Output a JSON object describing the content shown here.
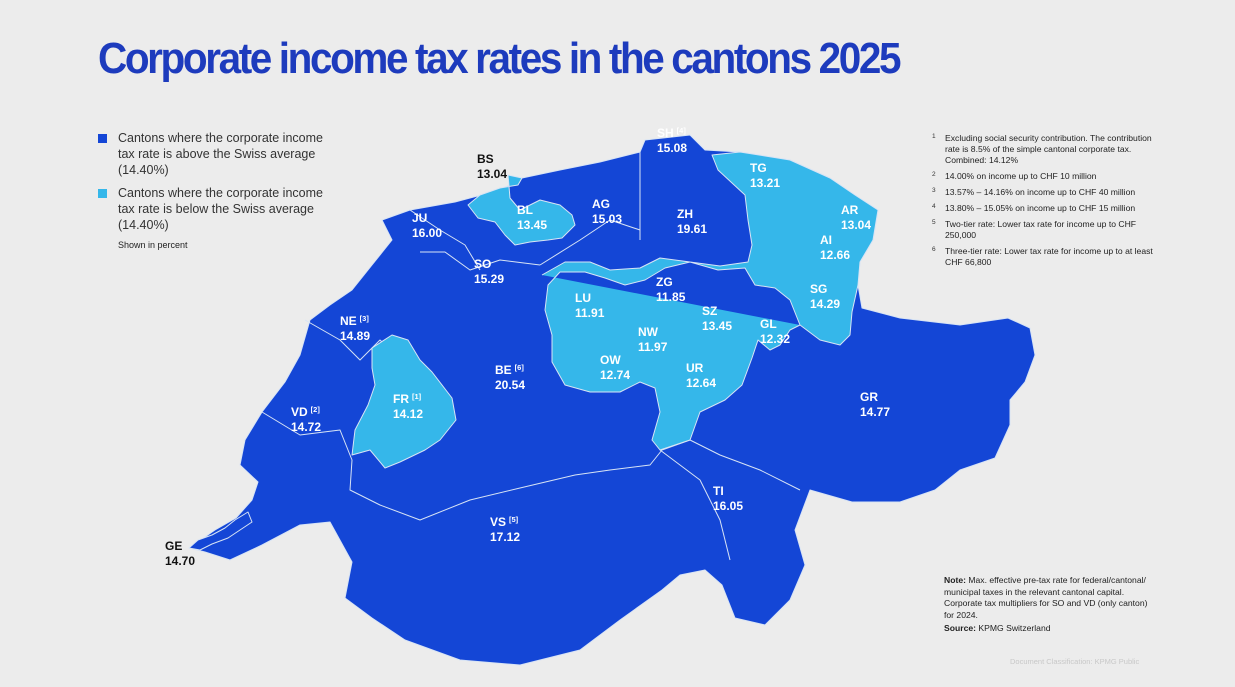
{
  "title": "Corporate income tax rates in the cantons 2025",
  "colors": {
    "above": "#1446d6",
    "below": "#35b7ea",
    "title": "#1d3bbd",
    "background": "#ececec"
  },
  "legend": {
    "above": "Cantons where the corporate income tax rate is above the Swiss average (14.40%)",
    "below": "Cantons where the corporate income tax rate is below the Swiss average (14.40%)",
    "unit_note": "Shown in percent"
  },
  "cantons": [
    {
      "code": "SH",
      "rate": "15.08",
      "footnote": "4",
      "group": "above"
    },
    {
      "code": "BS",
      "rate": "13.04",
      "footnote": "",
      "group": "below"
    },
    {
      "code": "TG",
      "rate": "13.21",
      "footnote": "",
      "group": "below"
    },
    {
      "code": "JU",
      "rate": "16.00",
      "footnote": "",
      "group": "above"
    },
    {
      "code": "BL",
      "rate": "13.45",
      "footnote": "",
      "group": "below"
    },
    {
      "code": "AG",
      "rate": "15.03",
      "footnote": "",
      "group": "above"
    },
    {
      "code": "ZH",
      "rate": "19.61",
      "footnote": "",
      "group": "above"
    },
    {
      "code": "AR",
      "rate": "13.04",
      "footnote": "",
      "group": "below"
    },
    {
      "code": "AI",
      "rate": "12.66",
      "footnote": "",
      "group": "below"
    },
    {
      "code": "SO",
      "rate": "15.29",
      "footnote": "",
      "group": "above"
    },
    {
      "code": "ZG",
      "rate": "11.85",
      "footnote": "",
      "group": "below"
    },
    {
      "code": "SG",
      "rate": "14.29",
      "footnote": "",
      "group": "below"
    },
    {
      "code": "LU",
      "rate": "11.91",
      "footnote": "",
      "group": "below"
    },
    {
      "code": "SZ",
      "rate": "13.45",
      "footnote": "",
      "group": "below"
    },
    {
      "code": "GL",
      "rate": "12.32",
      "footnote": "",
      "group": "below"
    },
    {
      "code": "NE",
      "rate": "14.89",
      "footnote": "3",
      "group": "above"
    },
    {
      "code": "NW",
      "rate": "11.97",
      "footnote": "",
      "group": "below"
    },
    {
      "code": "OW",
      "rate": "12.74",
      "footnote": "",
      "group": "below"
    },
    {
      "code": "UR",
      "rate": "12.64",
      "footnote": "",
      "group": "below"
    },
    {
      "code": "BE",
      "rate": "20.54",
      "footnote": "6",
      "group": "above"
    },
    {
      "code": "FR",
      "rate": "14.12",
      "footnote": "1",
      "group": "below"
    },
    {
      "code": "VD",
      "rate": "14.72",
      "footnote": "2",
      "group": "above"
    },
    {
      "code": "GR",
      "rate": "14.77",
      "footnote": "",
      "group": "above"
    },
    {
      "code": "TI",
      "rate": "16.05",
      "footnote": "",
      "group": "above"
    },
    {
      "code": "VS",
      "rate": "17.12",
      "footnote": "5",
      "group": "above"
    },
    {
      "code": "GE",
      "rate": "14.70",
      "footnote": "",
      "group": "above"
    }
  ],
  "footnotes": [
    {
      "num": "1",
      "text": "Excluding social security contribution. The contribution rate is 8.5% of the simple cantonal corporate tax. Combined: 14.12%"
    },
    {
      "num": "2",
      "text": "14.00% on income up to CHF 10 million"
    },
    {
      "num": "3",
      "text": "13.57% – 14.16% on income up to CHF 40 million"
    },
    {
      "num": "4",
      "text": "13.80% – 15.05% on income up to CHF 15 million"
    },
    {
      "num": "5",
      "text": "Two-tier rate: Lower tax rate for income up to CHF 250,000"
    },
    {
      "num": "6",
      "text": "Three-tier rate: Lower tax rate for income up to at least CHF 66,800"
    }
  ],
  "note": {
    "label": "Note:",
    "text": "Max. effective pre-tax rate for federal/cantonal/ municipal taxes in the relevant cantonal capital. Corporate tax multipliers for SO and VD (only canton) for 2024."
  },
  "source": {
    "label": "Source:",
    "text": "KPMG Switzerland"
  },
  "classification": "Document Classification: KPMG Public"
}
